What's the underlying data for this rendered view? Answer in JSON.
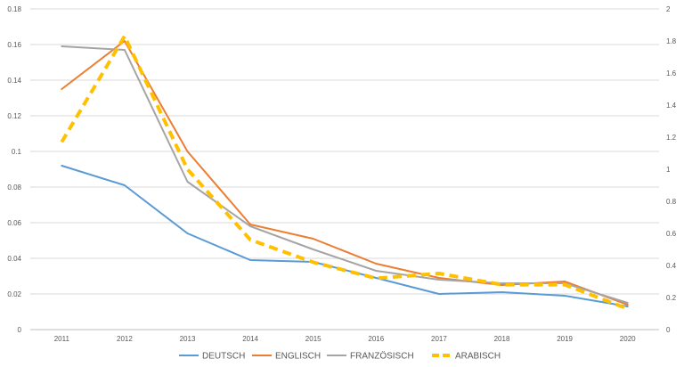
{
  "chart_data": {
    "type": "line",
    "title": "",
    "xlabel": "",
    "ylabel": "",
    "categories": [
      "2011",
      "2012",
      "2013",
      "2014",
      "2015",
      "2016",
      "2017",
      "2018",
      "2019",
      "2020"
    ],
    "ylim": [
      0,
      0.18
    ],
    "y_ticks": [
      "0",
      "0.02",
      "0.04",
      "0.06",
      "0.08",
      "0.1",
      "0.12",
      "0.14",
      "0.16",
      "0.18"
    ],
    "y2lim": [
      0,
      2
    ],
    "y2_ticks": [
      "0",
      "0.2",
      "0.4",
      "0.6",
      "0.8",
      "1",
      "1.2",
      "1.4",
      "1.6",
      "1.8",
      "2"
    ],
    "grid": true,
    "legend_position": "bottom",
    "series": [
      {
        "name": "DEUTSCH",
        "axis": "left",
        "color": "#5b9bd5",
        "dashed": false,
        "values": [
          0.092,
          0.081,
          0.054,
          0.039,
          0.038,
          0.029,
          0.02,
          0.021,
          0.019,
          0.013
        ]
      },
      {
        "name": "ENGLISCH",
        "axis": "left",
        "color": "#ed7d31",
        "dashed": false,
        "values": [
          0.135,
          0.162,
          0.1,
          0.059,
          0.051,
          0.037,
          0.029,
          0.025,
          0.027,
          0.014
        ]
      },
      {
        "name": "FRANZÖSISCH",
        "axis": "left",
        "color": "#a5a5a5",
        "dashed": false,
        "values": [
          0.159,
          0.157,
          0.083,
          0.058,
          0.045,
          0.033,
          0.028,
          0.026,
          0.026,
          0.015
        ]
      },
      {
        "name": "ARABISCH",
        "axis": "right",
        "color": "#ffc000",
        "dashed": true,
        "values": [
          1.17,
          1.83,
          1.0,
          0.56,
          0.42,
          0.32,
          0.35,
          0.28,
          0.28,
          0.13
        ]
      }
    ]
  }
}
